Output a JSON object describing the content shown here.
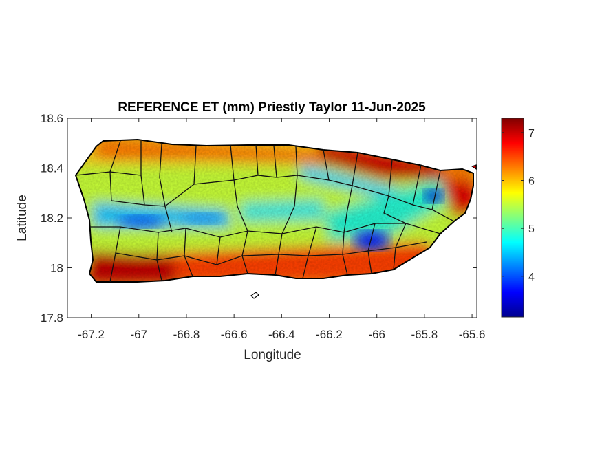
{
  "chart_data": {
    "type": "heatmap",
    "title": "REFERENCE ET (mm) Priestly Taylor 11-Jun-2025",
    "xlabel": "Longitude",
    "ylabel": "Latitude",
    "xlim": [
      -67.3,
      -65.58
    ],
    "ylim": [
      17.8,
      18.6
    ],
    "x_ticks": [
      -67.2,
      -67,
      -66.8,
      -66.6,
      -66.4,
      -66.2,
      -66,
      -65.8,
      -65.6
    ],
    "x_tick_labels": [
      "-67.2",
      "-67",
      "-66.8",
      "-66.6",
      "-66.4",
      "-66.2",
      "-66",
      "-65.8",
      "-65.6"
    ],
    "y_ticks": [
      17.8,
      18,
      18.2,
      18.4,
      18.6
    ],
    "y_tick_labels": [
      "17.8",
      "18",
      "18.2",
      "18.4",
      "18.6"
    ],
    "colormap": "jet",
    "colorbar": {
      "min": 3.15,
      "max": 7.3,
      "ticks": [
        4,
        5,
        6,
        7
      ],
      "tick_labels": [
        "4",
        "5",
        "6",
        "7"
      ],
      "placement": "right"
    },
    "grid": false,
    "field_summary": [
      {
        "region": "north coast east of -66.3",
        "value": 7.0
      },
      {
        "region": "south coast near -67.1",
        "value": 7.0
      },
      {
        "region": "southeast interior near -66.02, 18.1",
        "value": 3.8
      },
      {
        "region": "east near -65.78, 18.28",
        "value": 4.2
      },
      {
        "region": "west-central band near -67.0, 18.19",
        "value": 4.2
      },
      {
        "region": "central interior",
        "value": 5.6
      }
    ]
  }
}
